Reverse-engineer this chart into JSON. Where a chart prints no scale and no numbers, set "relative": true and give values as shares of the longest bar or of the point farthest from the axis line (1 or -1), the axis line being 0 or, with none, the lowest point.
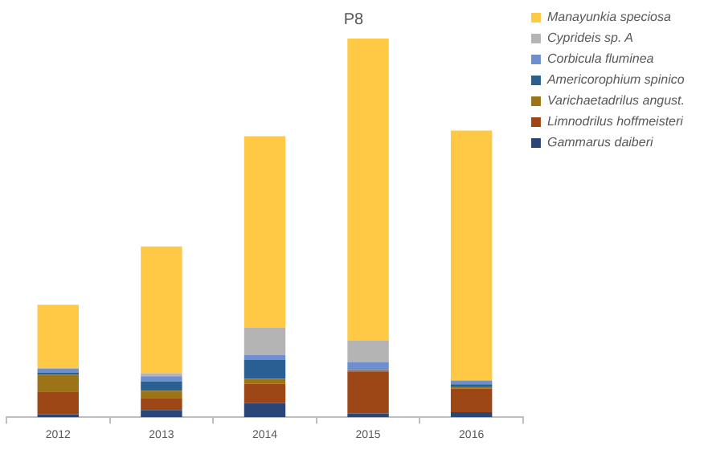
{
  "chart_data": {
    "type": "bar",
    "title": "P8",
    "stacked": true,
    "relative": true,
    "legend": "right",
    "grid": false,
    "categories": [
      "2012",
      "2013",
      "2014",
      "2015",
      "2016"
    ],
    "series": [
      {
        "name": "Gammarus daiberi",
        "color": "#2a4578",
        "values": [
          0.008,
          0.019,
          0.037,
          0.01,
          0.013
        ]
      },
      {
        "name": "Limnodrilus hoffmeisteri",
        "color": "#9e4716",
        "values": [
          0.06,
          0.032,
          0.051,
          0.111,
          0.062
        ]
      },
      {
        "name": "Varichaetadrilus angust.",
        "color": "#9c7415",
        "values": [
          0.044,
          0.019,
          0.014,
          0.003,
          0.006
        ]
      },
      {
        "name": "Americorophium spinico",
        "color": "#2a5f94",
        "values": [
          0.006,
          0.025,
          0.049,
          0,
          0.006
        ]
      },
      {
        "name": "Corbicula fluminea",
        "color": "#6d8fcf",
        "values": [
          0.011,
          0.013,
          0.013,
          0.022,
          0.01
        ]
      },
      {
        "name": "Cyprideis sp. A",
        "color": "#b4b4b4",
        "values": [
          null,
          0.008,
          0.073,
          0.057,
          null
        ]
      },
      {
        "name": "Manayunkia speciosa",
        "color": "#ffc845",
        "values": [
          0.168,
          0.335,
          0.505,
          0.797,
          0.66
        ]
      }
    ]
  }
}
